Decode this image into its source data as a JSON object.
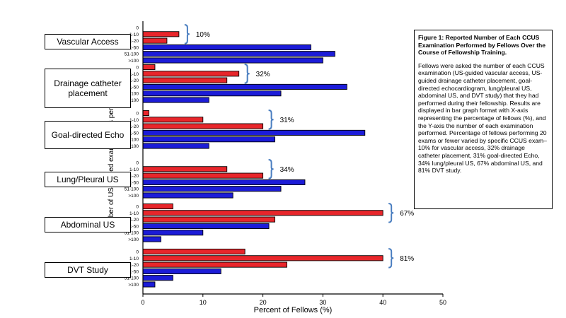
{
  "colors": {
    "le20": "#e8262b",
    "gt20": "#1c1cd8",
    "brace": "#4a7ec0"
  },
  "chart_data": {
    "type": "bar",
    "orientation": "horizontal",
    "title": "Figure 1: Reported Number of Each CCUS Examination Performed by Fellows Over the Course of Fellowship Training.",
    "xlabel": "Percent of Fellows (%)",
    "ylabel": "Number of US-guided examinations performed",
    "xlim": [
      0,
      50
    ],
    "xticks": [
      "0",
      "10",
      "20",
      "30",
      "40",
      "50"
    ],
    "categories": [
      "0",
      "1-10",
      "11-20",
      "21-50",
      "51-100",
      ">100"
    ],
    "groups": [
      {
        "name": "Vascular Access",
        "values": [
          0,
          6,
          4,
          28,
          32,
          30
        ],
        "pct_le20": "10%"
      },
      {
        "name": "Drainage catheter placement",
        "values": [
          2,
          16,
          14,
          34,
          23,
          11
        ],
        "pct_le20": "32%"
      },
      {
        "name": "Goal-directed Echo",
        "values": [
          1,
          10,
          20,
          37,
          22,
          11
        ],
        "pct_le20": "31%"
      },
      {
        "name": "Lung/Pleural US",
        "values": [
          0,
          14,
          20,
          27,
          23,
          15
        ],
        "pct_le20": "34%"
      },
      {
        "name": "Abdominal US",
        "values": [
          5,
          40,
          22,
          21,
          10,
          3
        ],
        "pct_le20": "67%"
      },
      {
        "name": "DVT Study",
        "values": [
          17,
          40,
          24,
          13,
          5,
          2
        ],
        "pct_le20": "81%"
      }
    ]
  },
  "caption": {
    "title": "Figure 1: Reported Number of Each CCUS Examination Performed by Fellows Over the Course of Fellowship Training.",
    "body": "Fellows were asked the number of each CCUS examination (US-guided vascular access, US-guided drainage catheter placement, goal-directed echocardiogram, lung/pleural US, abdominal US, and DVT study) that they had performed during their fellowship.  Results are displayed in bar graph format with X-axis representing the percentage of fellows (%), and the Y-axis the number of each examination performed. Percentage of fellows performing 20 exams or fewer varied by specific CCUS exam– 10% for vascular access, 32% drainage catheter placement, 31% goal-directed Echo, 34% lung/pleural US, 67% abdominal US, and 81% DVT study."
  }
}
